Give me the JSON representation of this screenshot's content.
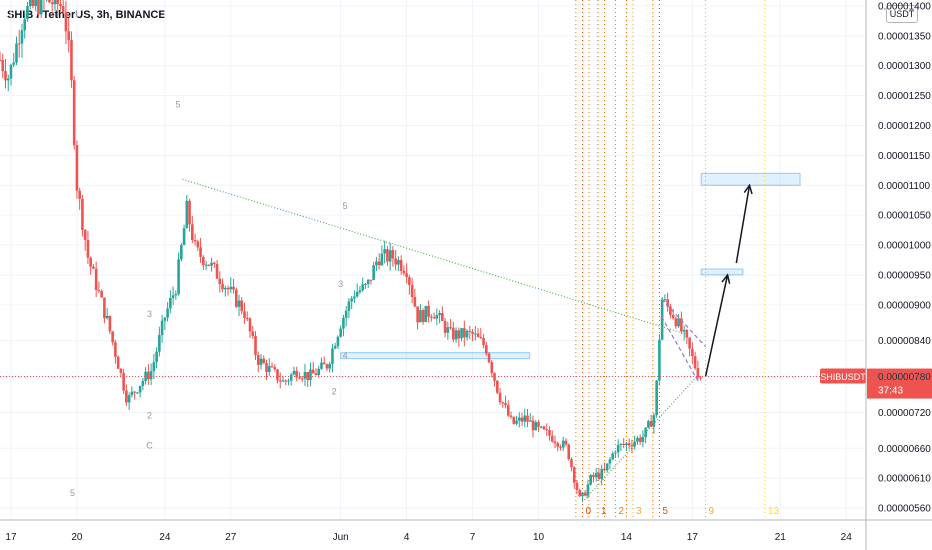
{
  "chart_data": {
    "type": "candlestick",
    "title": "SHIB / TetherUS, 3h, BINANCE",
    "currency": "USDT",
    "price_axis": {
      "min": 5.4e-06,
      "max": 1.41e-05,
      "ticks": [
        "0.00001400",
        "0.00001350",
        "0.00001300",
        "0.00001250",
        "0.00001200",
        "0.00001150",
        "0.00001100",
        "0.00001050",
        "0.00001000",
        "0.00000950",
        "0.00000900",
        "0.00000840",
        "0.00000780",
        "0.00000720",
        "0.00000660",
        "0.00000610",
        "0.00000560"
      ],
      "tick_values": [
        1.4e-05,
        1.35e-05,
        1.3e-05,
        1.25e-05,
        1.2e-05,
        1.15e-05,
        1.1e-05,
        1.05e-05,
        1e-05,
        9.5e-06,
        9e-06,
        8.4e-06,
        7.8e-06,
        7.2e-06,
        6.6e-06,
        6.1e-06,
        5.6e-06
      ]
    },
    "time_axis": {
      "min_day": 16.5,
      "max_day": 55.9,
      "labels": [
        {
          "text": "17",
          "day": 17
        },
        {
          "text": "20",
          "day": 20
        },
        {
          "text": "24",
          "day": 24
        },
        {
          "text": "27",
          "day": 27
        },
        {
          "text": "Jun",
          "day": 32
        },
        {
          "text": "4",
          "day": 35
        },
        {
          "text": "7",
          "day": 38
        },
        {
          "text": "10",
          "day": 41
        },
        {
          "text": "14",
          "day": 45
        },
        {
          "text": "17",
          "day": 48
        },
        {
          "text": "21",
          "day": 52
        },
        {
          "text": "24",
          "day": 55
        }
      ]
    },
    "last_price": {
      "symbol": "SHIBUSDT",
      "value": "0.00000780",
      "countdown": "37:43",
      "price": 7.8e-06
    },
    "path": [
      [
        16.5,
        1.31e-05
      ],
      [
        16.9,
        1.28e-05
      ],
      [
        17.6,
        1.39e-05
      ],
      [
        18.6,
        1.41e-05
      ],
      [
        19.4,
        1.4e-05
      ],
      [
        19.7,
        1.3e-05
      ],
      [
        20.0,
        1.1e-05
      ],
      [
        20.5,
        9.8e-06
      ],
      [
        21.4,
        8.7e-06
      ],
      [
        22.3,
        7.4e-06
      ],
      [
        22.9,
        7.7e-06
      ],
      [
        23.4,
        7.9e-06
      ],
      [
        24.0,
        8.8e-06
      ],
      [
        24.5,
        9.3e-06
      ],
      [
        25.0,
        1.06e-05
      ],
      [
        25.4,
        9.9e-06
      ],
      [
        26.0,
        9.7e-06
      ],
      [
        26.6,
        9.4e-06
      ],
      [
        27.6,
        8.9e-06
      ],
      [
        28.2,
        8.1e-06
      ],
      [
        28.8,
        7.9e-06
      ],
      [
        29.4,
        7.7e-06
      ],
      [
        30.0,
        7.9e-06
      ],
      [
        30.6,
        7.8e-06
      ],
      [
        31.4,
        8e-06
      ],
      [
        32.0,
        8.7e-06
      ],
      [
        32.6,
        9.2e-06
      ],
      [
        33.2,
        9.3e-06
      ],
      [
        33.7,
        9.8e-06
      ],
      [
        34.4,
        9.8e-06
      ],
      [
        35.0,
        9.6e-06
      ],
      [
        35.5,
        8.8e-06
      ],
      [
        36.2,
        8.9e-06
      ],
      [
        37.0,
        8.5e-06
      ],
      [
        38.0,
        8.5e-06
      ],
      [
        38.6,
        8.3e-06
      ],
      [
        39.2,
        7.5e-06
      ],
      [
        39.8,
        7e-06
      ],
      [
        40.4,
        7.1e-06
      ],
      [
        41.0,
        6.9e-06
      ],
      [
        41.6,
        6.8e-06
      ],
      [
        42.3,
        6.6e-06
      ],
      [
        42.9,
        5.7e-06
      ],
      [
        43.4,
        6.1e-06
      ],
      [
        44.0,
        6.2e-06
      ],
      [
        44.5,
        6.6e-06
      ],
      [
        45.2,
        6.7e-06
      ],
      [
        45.8,
        6.8e-06
      ],
      [
        46.3,
        7.2e-06
      ],
      [
        46.6,
        9.1e-06
      ],
      [
        47.2,
        8.8e-06
      ],
      [
        47.7,
        8.4e-06
      ],
      [
        48.2,
        7.9e-06
      ],
      [
        48.4,
        7.8e-06
      ]
    ],
    "fib_time_lines": [
      {
        "label": "0",
        "day": 43.0,
        "color": "#e65100"
      },
      {
        "label": "1",
        "day": 43.7,
        "color": "#e65100"
      },
      {
        "label": "2",
        "day": 44.5,
        "color": "#f57c00"
      },
      {
        "label": "3",
        "day": 45.3,
        "color": "#f9a825"
      },
      {
        "label": "5",
        "day": 46.5,
        "color": "#e65100"
      },
      {
        "label": "9",
        "day": 48.6,
        "color": "#f9a825"
      },
      {
        "label": "13",
        "day": 51.3,
        "color": "#fdd835"
      }
    ],
    "extra_vlines": [
      {
        "day": 42.7
      },
      {
        "day": 43.3
      },
      {
        "day": 44.0
      },
      {
        "day": 45.0
      },
      {
        "day": 46.2
      }
    ],
    "trendlines": [
      {
        "from": [
          24.8,
          1.11e-05
        ],
        "to": [
          47.8,
          8.5e-06
        ],
        "color": "#4caf50",
        "dash": "1,2"
      },
      {
        "from": [
          43.0,
          5.7e-06
        ],
        "to": [
          48.2,
          7.8e-06
        ],
        "color": "#4caf50",
        "dash": "1,2"
      },
      {
        "from": [
          46.6,
          9.1e-06
        ],
        "to": [
          48.6,
          8.3e-06
        ],
        "color": "#9575cd",
        "dash": "4,3"
      },
      {
        "from": [
          46.6,
          8.8e-06
        ],
        "to": [
          48.3,
          7.7e-06
        ],
        "color": "#9575cd",
        "dash": "4,3"
      }
    ],
    "rectangles": [
      {
        "from_day": 32.0,
        "to_day": 40.6,
        "top": 8.2e-06,
        "bottom": 8.1e-06
      },
      {
        "from_day": 48.4,
        "to_day": 50.3,
        "top": 9.6e-06,
        "bottom": 9.5e-06
      },
      {
        "from_day": 48.4,
        "to_day": 52.9,
        "top": 1.12e-05,
        "bottom": 1.1e-05
      }
    ],
    "arrows": [
      {
        "from": [
          48.6,
          7.8e-06
        ],
        "to": [
          49.6,
          9.5e-06
        ]
      },
      {
        "from": [
          50.0,
          9.7e-06
        ],
        "to": [
          50.6,
          1.1e-05
        ]
      }
    ],
    "wave_labels": [
      {
        "text": "5",
        "day": 24.6,
        "price": 1.23e-05
      },
      {
        "text": "5",
        "day": 19.8,
        "price": 5.8e-06
      },
      {
        "text": "3",
        "day": 23.3,
        "price": 8.8e-06
      },
      {
        "text": "2",
        "day": 23.3,
        "price": 7.1e-06
      },
      {
        "text": "C",
        "day": 23.3,
        "price": 6.6e-06
      },
      {
        "text": "5",
        "day": 32.2,
        "price": 1.06e-05
      },
      {
        "text": "3",
        "day": 32.0,
        "price": 9.3e-06
      },
      {
        "text": "2",
        "day": 31.7,
        "price": 7.5e-06
      },
      {
        "text": "4",
        "day": 32.2,
        "price": 8.1e-06
      }
    ]
  }
}
